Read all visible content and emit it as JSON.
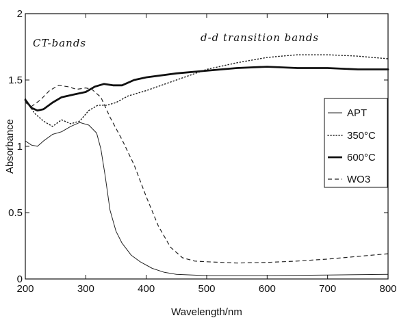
{
  "chart_data": {
    "type": "line",
    "title": "",
    "xlabel": "Wavelength/nm",
    "ylabel": "Absorbance",
    "xlim": [
      200,
      800
    ],
    "ylim": [
      0,
      2
    ],
    "xticks": [
      "200",
      "300",
      "400",
      "500",
      "600",
      "700",
      "800"
    ],
    "yticks": [
      "0",
      "0.5",
      "1",
      "1.5",
      "2"
    ],
    "grid": false,
    "legend_position": "right",
    "annotations": [
      {
        "text": "CT-bands",
        "x": 230,
        "y": 1.85
      },
      {
        "text": "d-d transition bands",
        "x": 550,
        "y": 1.85
      }
    ],
    "series": [
      {
        "name": "APT",
        "style": "solid-thin",
        "color": "#222222",
        "points": [
          [
            200,
            1.04
          ],
          [
            210,
            1.01
          ],
          [
            220,
            1.0
          ],
          [
            230,
            1.04
          ],
          [
            245,
            1.09
          ],
          [
            260,
            1.11
          ],
          [
            275,
            1.15
          ],
          [
            290,
            1.18
          ],
          [
            305,
            1.16
          ],
          [
            318,
            1.1
          ],
          [
            325,
            0.98
          ],
          [
            332,
            0.78
          ],
          [
            340,
            0.52
          ],
          [
            350,
            0.36
          ],
          [
            360,
            0.27
          ],
          [
            375,
            0.18
          ],
          [
            390,
            0.13
          ],
          [
            410,
            0.08
          ],
          [
            430,
            0.05
          ],
          [
            450,
            0.035
          ],
          [
            500,
            0.025
          ],
          [
            600,
            0.025
          ],
          [
            700,
            0.03
          ],
          [
            800,
            0.035
          ]
        ]
      },
      {
        "name": "350°C",
        "style": "dotted",
        "color": "#222222",
        "points": [
          [
            200,
            1.36
          ],
          [
            215,
            1.25
          ],
          [
            230,
            1.19
          ],
          [
            245,
            1.15
          ],
          [
            260,
            1.2
          ],
          [
            275,
            1.17
          ],
          [
            290,
            1.19
          ],
          [
            305,
            1.27
          ],
          [
            320,
            1.31
          ],
          [
            335,
            1.31
          ],
          [
            350,
            1.33
          ],
          [
            370,
            1.38
          ],
          [
            400,
            1.42
          ],
          [
            450,
            1.5
          ],
          [
            500,
            1.58
          ],
          [
            550,
            1.63
          ],
          [
            600,
            1.67
          ],
          [
            650,
            1.69
          ],
          [
            700,
            1.69
          ],
          [
            750,
            1.68
          ],
          [
            800,
            1.66
          ]
        ]
      },
      {
        "name": "600°C",
        "style": "solid-thick",
        "color": "#111111",
        "points": [
          [
            200,
            1.35
          ],
          [
            210,
            1.29
          ],
          [
            220,
            1.27
          ],
          [
            230,
            1.28
          ],
          [
            245,
            1.33
          ],
          [
            260,
            1.37
          ],
          [
            280,
            1.39
          ],
          [
            300,
            1.41
          ],
          [
            315,
            1.45
          ],
          [
            330,
            1.47
          ],
          [
            345,
            1.46
          ],
          [
            360,
            1.46
          ],
          [
            380,
            1.5
          ],
          [
            400,
            1.52
          ],
          [
            450,
            1.55
          ],
          [
            500,
            1.57
          ],
          [
            550,
            1.59
          ],
          [
            600,
            1.6
          ],
          [
            650,
            1.59
          ],
          [
            700,
            1.59
          ],
          [
            750,
            1.58
          ],
          [
            800,
            1.58
          ]
        ]
      },
      {
        "name": "WO3",
        "style": "dashed",
        "color": "#222222",
        "points": [
          [
            200,
            1.33
          ],
          [
            210,
            1.3
          ],
          [
            225,
            1.35
          ],
          [
            240,
            1.42
          ],
          [
            255,
            1.46
          ],
          [
            270,
            1.45
          ],
          [
            285,
            1.43
          ],
          [
            300,
            1.44
          ],
          [
            310,
            1.43
          ],
          [
            325,
            1.37
          ],
          [
            340,
            1.22
          ],
          [
            360,
            1.05
          ],
          [
            380,
            0.86
          ],
          [
            400,
            0.62
          ],
          [
            420,
            0.4
          ],
          [
            440,
            0.24
          ],
          [
            460,
            0.16
          ],
          [
            480,
            0.135
          ],
          [
            500,
            0.13
          ],
          [
            550,
            0.12
          ],
          [
            600,
            0.125
          ],
          [
            650,
            0.135
          ],
          [
            700,
            0.15
          ],
          [
            750,
            0.17
          ],
          [
            800,
            0.19
          ]
        ]
      }
    ]
  }
}
